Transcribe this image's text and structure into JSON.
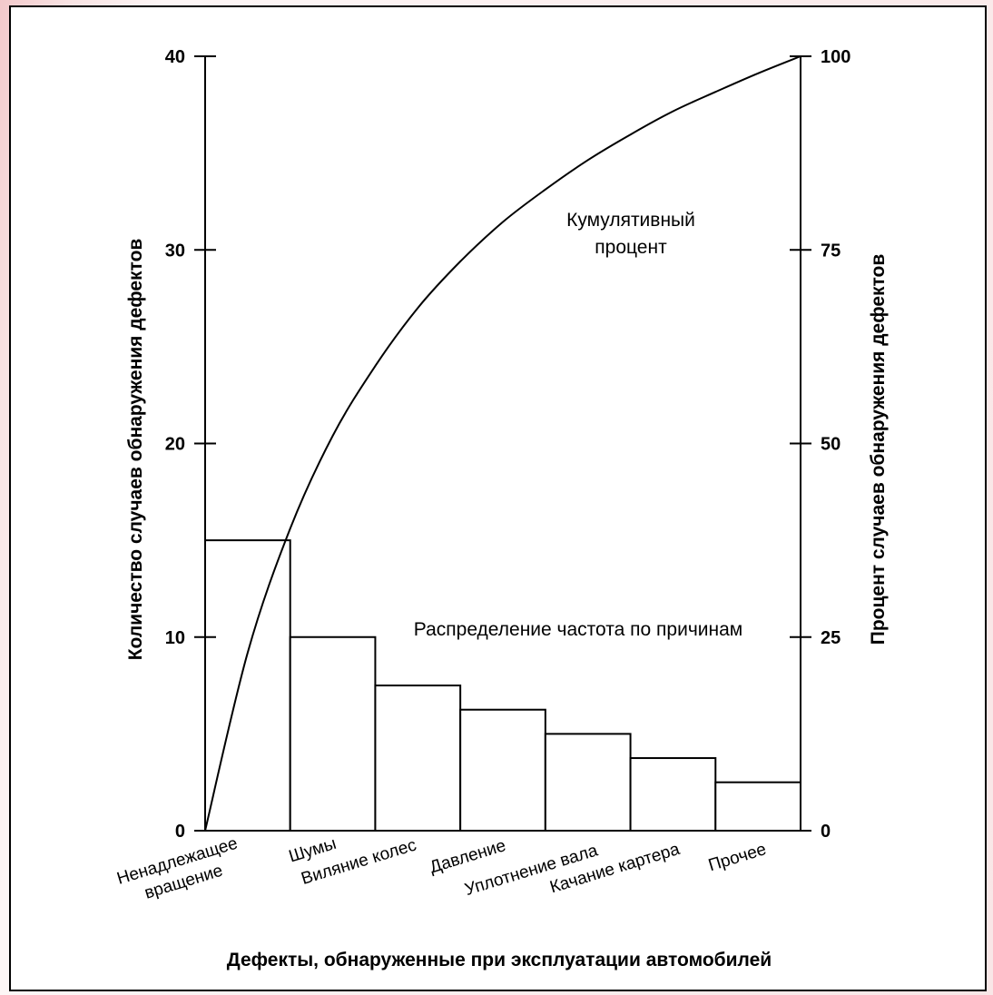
{
  "chart_data": {
    "type": "pareto",
    "categories": [
      [
        "Ненадлежащее",
        "вращение"
      ],
      [
        "Шумы"
      ],
      [
        "Виляние колес"
      ],
      [
        "Давление"
      ],
      [
        "Уплотнение вала"
      ],
      [
        "Качание картера"
      ],
      [
        "Прочее"
      ]
    ],
    "values": [
      15,
      10,
      7.5,
      6.25,
      5,
      3.75,
      2.5
    ],
    "cumulative_x": [
      0,
      0.5,
      1,
      1.5,
      2,
      2.5,
      3,
      3.5,
      4,
      4.5,
      5,
      5.5,
      6,
      6.5,
      7
    ],
    "cumulative_percent": [
      0,
      23,
      39,
      51,
      60,
      67.5,
      73.5,
      78.6,
      82.8,
      86.6,
      89.9,
      92.9,
      95.4,
      97.8,
      100
    ],
    "xlabel": "Дефекты, обнаруженные при эксплуатации автомобилей",
    "ylabel_left": "Количество случаев обнаружения дефектов",
    "ylabel_right": "Процент случаев обнаружения дефектов",
    "ylim_left": [
      0,
      40
    ],
    "ylim_right": [
      0,
      100
    ],
    "yticks_left": [
      "0",
      "10",
      "20",
      "30",
      "40"
    ],
    "yticks_right": [
      "0",
      "25",
      "50",
      "75",
      "100"
    ],
    "annotations": {
      "cumulative": [
        "Кумулятивный",
        "процент"
      ],
      "distribution": "Распределение частота по причинам"
    },
    "grid": false,
    "colors": {
      "line": "#000000",
      "background": "#ffffff"
    }
  }
}
